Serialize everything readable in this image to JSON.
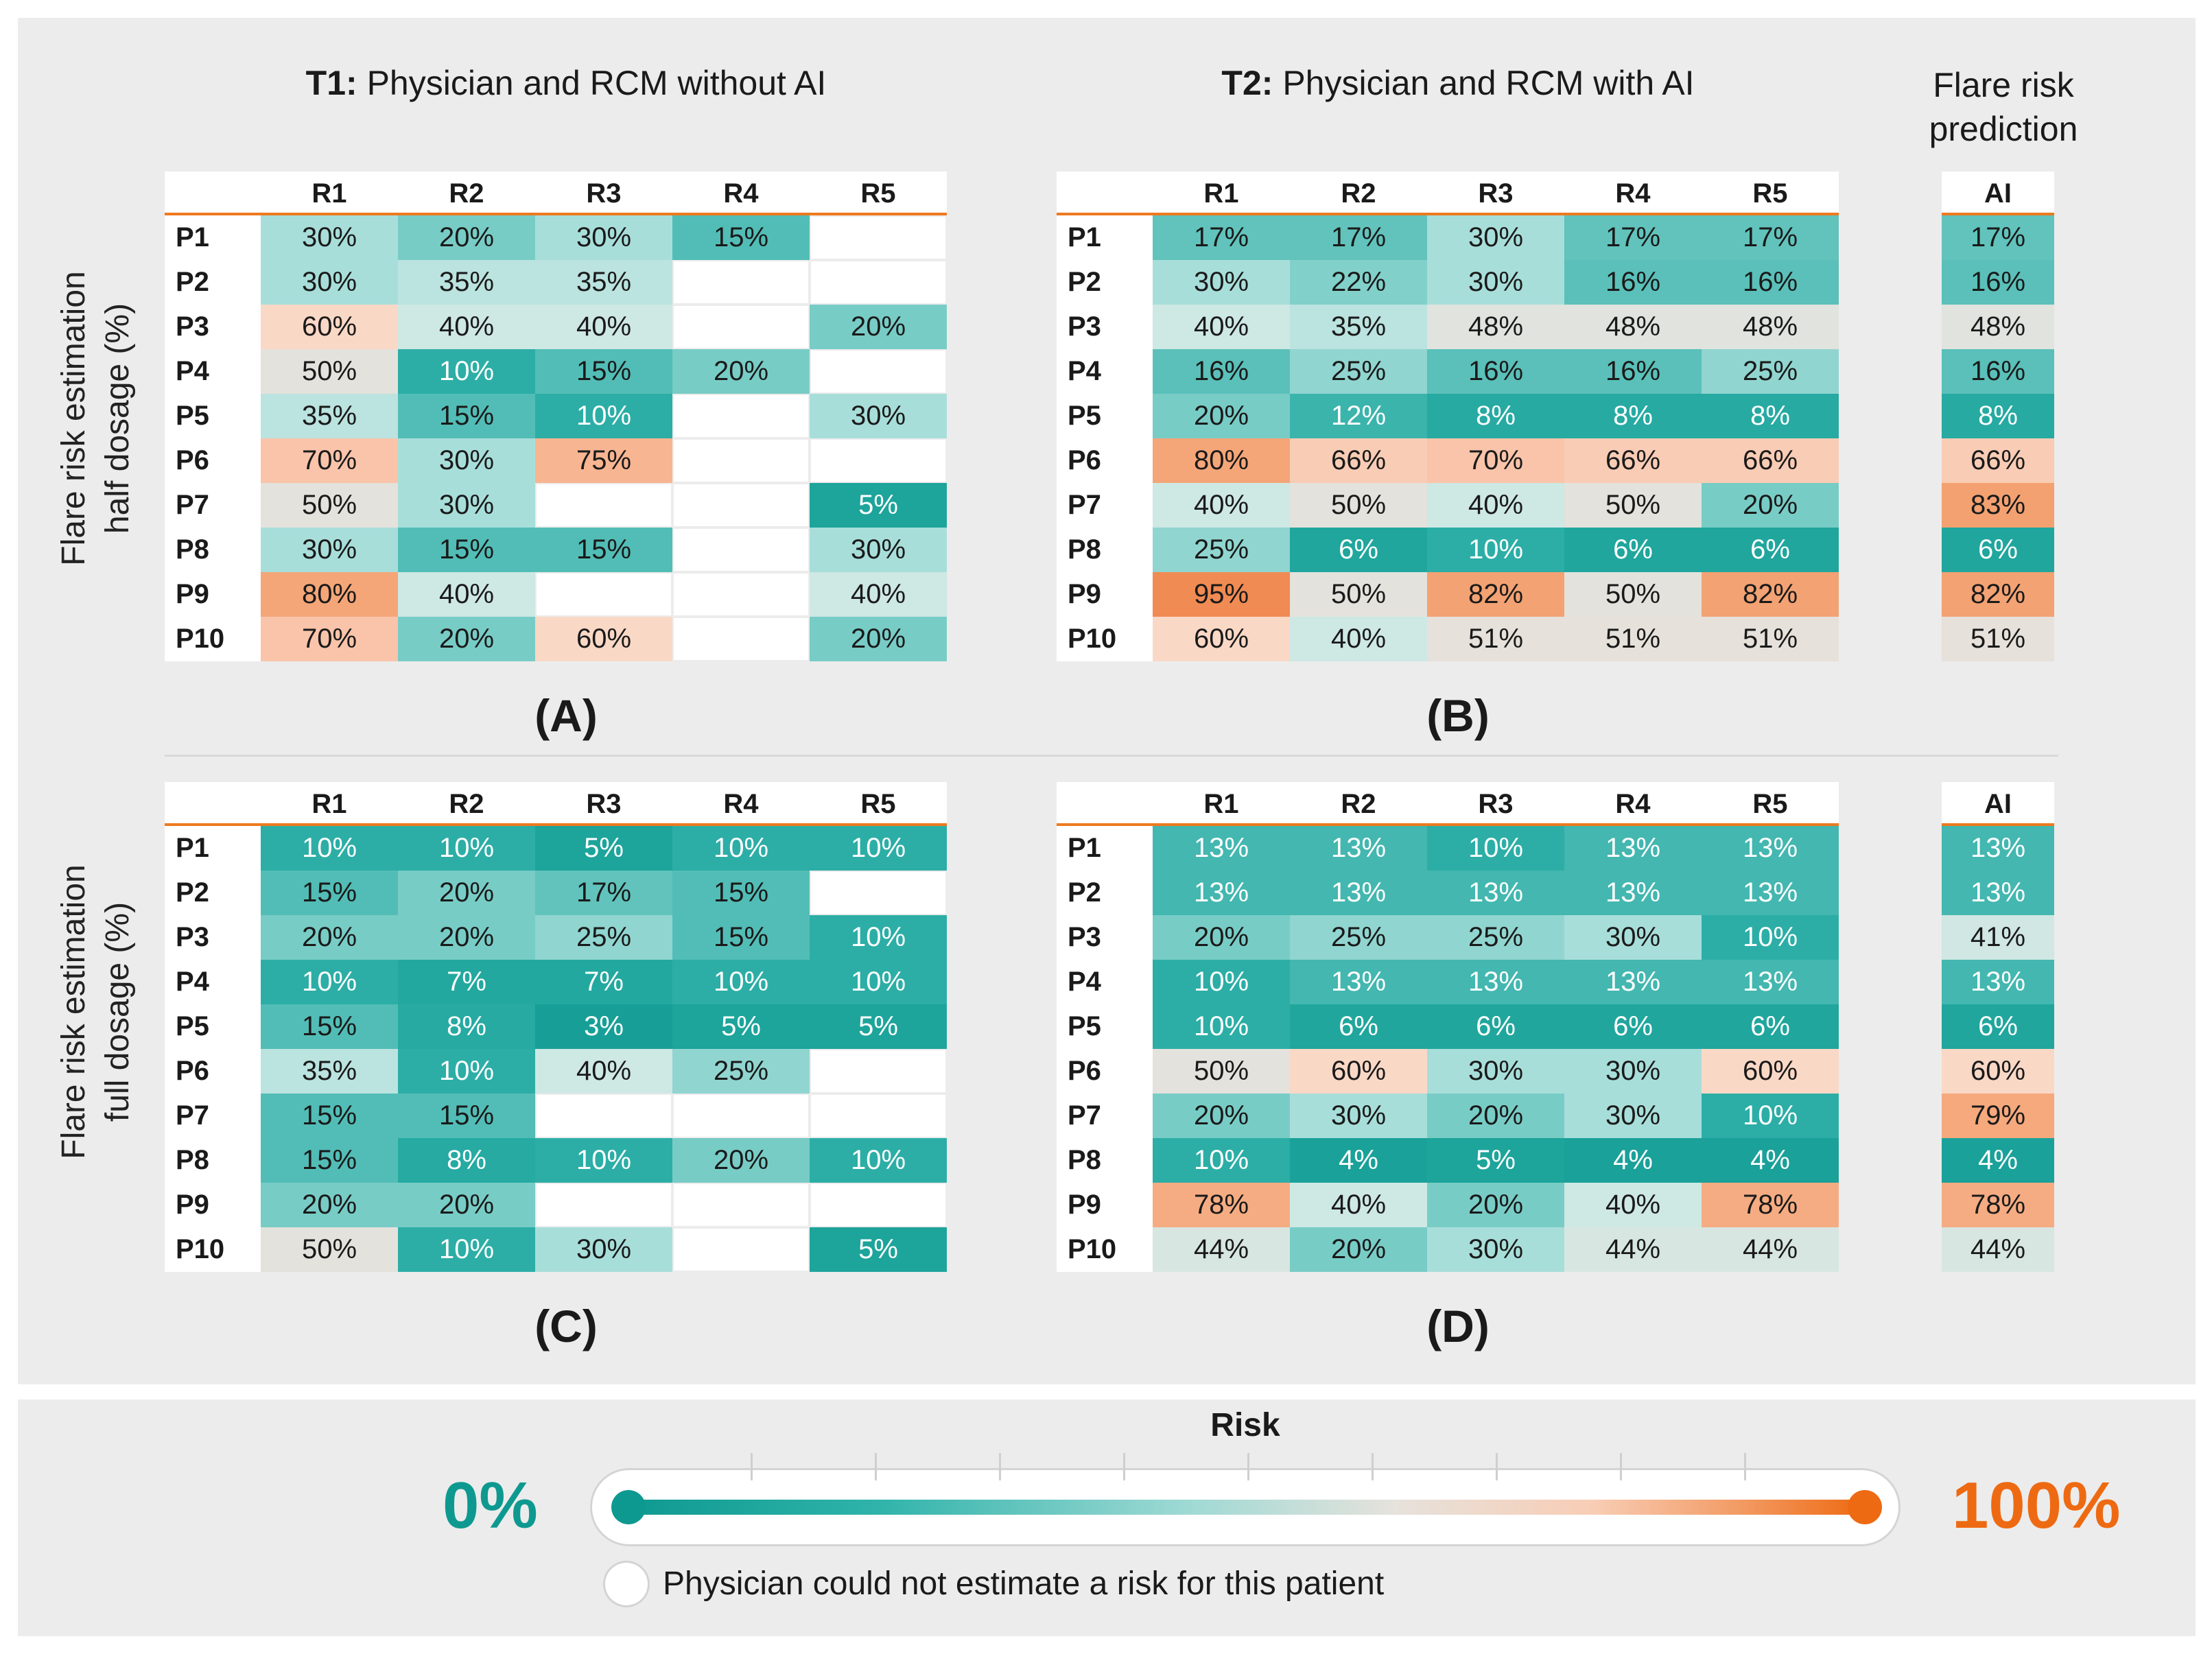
{
  "header": {
    "t1_bold": "T1:",
    "t1_rest": " Physician and RCM without AI",
    "t2_bold": "T2:",
    "t2_rest": " Physician and RCM with AI",
    "ai_line1": "Flare risk",
    "ai_line2": "prediction"
  },
  "ylabels": {
    "top_line1": "Flare risk estimation",
    "top_line2": "half dosage (%)",
    "bottom_line1": "Flare risk estimation",
    "bottom_line2": "full dosage (%)"
  },
  "legend": {
    "title": "Risk",
    "low": "0%",
    "high": "100%",
    "empty_note": "Physician could not estimate a risk for this patient",
    "low_color": "#0e9990",
    "high_color": "#ee6a12"
  },
  "chart_data": [
    {
      "type": "heatmap",
      "label": "(A)",
      "cols": [
        "R1",
        "R2",
        "R3",
        "R4",
        "R5"
      ],
      "rows": [
        "P1",
        "P2",
        "P3",
        "P4",
        "P5",
        "P6",
        "P7",
        "P8",
        "P9",
        "P10"
      ],
      "values": [
        [
          30,
          20,
          30,
          15,
          null
        ],
        [
          30,
          35,
          35,
          null,
          null
        ],
        [
          60,
          40,
          40,
          null,
          20
        ],
        [
          50,
          10,
          15,
          20,
          null
        ],
        [
          35,
          15,
          10,
          null,
          30
        ],
        [
          70,
          30,
          75,
          null,
          null
        ],
        [
          50,
          30,
          null,
          null,
          5
        ],
        [
          30,
          15,
          15,
          null,
          30
        ],
        [
          80,
          40,
          null,
          null,
          40
        ],
        [
          70,
          20,
          60,
          null,
          20
        ]
      ]
    },
    {
      "type": "heatmap",
      "label": "(B)",
      "cols": [
        "R1",
        "R2",
        "R3",
        "R4",
        "R5"
      ],
      "rows": [
        "P1",
        "P2",
        "P3",
        "P4",
        "P5",
        "P6",
        "P7",
        "P8",
        "P9",
        "P10"
      ],
      "values": [
        [
          17,
          17,
          30,
          17,
          17
        ],
        [
          30,
          22,
          30,
          16,
          16
        ],
        [
          40,
          35,
          48,
          48,
          48
        ],
        [
          16,
          25,
          16,
          16,
          25
        ],
        [
          20,
          12,
          8,
          8,
          8
        ],
        [
          80,
          66,
          70,
          66,
          66
        ],
        [
          40,
          50,
          40,
          50,
          20
        ],
        [
          25,
          6,
          10,
          6,
          6
        ],
        [
          95,
          50,
          82,
          50,
          82
        ],
        [
          60,
          40,
          51,
          51,
          51
        ]
      ]
    },
    {
      "type": "heatmap",
      "label": "AI-top",
      "cols": [
        "AI"
      ],
      "rows": [
        "P1",
        "P2",
        "P3",
        "P4",
        "P5",
        "P6",
        "P7",
        "P8",
        "P9",
        "P10"
      ],
      "values": [
        [
          17
        ],
        [
          16
        ],
        [
          48
        ],
        [
          16
        ],
        [
          8
        ],
        [
          66
        ],
        [
          83
        ],
        [
          6
        ],
        [
          82
        ],
        [
          51
        ]
      ]
    },
    {
      "type": "heatmap",
      "label": "(C)",
      "cols": [
        "R1",
        "R2",
        "R3",
        "R4",
        "R5"
      ],
      "rows": [
        "P1",
        "P2",
        "P3",
        "P4",
        "P5",
        "P6",
        "P7",
        "P8",
        "P9",
        "P10"
      ],
      "values": [
        [
          10,
          10,
          5,
          10,
          10
        ],
        [
          15,
          20,
          17,
          15,
          null
        ],
        [
          20,
          20,
          25,
          15,
          10
        ],
        [
          10,
          7,
          7,
          10,
          10
        ],
        [
          15,
          8,
          3,
          5,
          5
        ],
        [
          35,
          10,
          40,
          25,
          null
        ],
        [
          15,
          15,
          null,
          null,
          null
        ],
        [
          15,
          8,
          10,
          20,
          10
        ],
        [
          20,
          20,
          null,
          null,
          null
        ],
        [
          50,
          10,
          30,
          null,
          5
        ]
      ]
    },
    {
      "type": "heatmap",
      "label": "(D)",
      "cols": [
        "R1",
        "R2",
        "R3",
        "R4",
        "R5"
      ],
      "rows": [
        "P1",
        "P2",
        "P3",
        "P4",
        "P5",
        "P6",
        "P7",
        "P8",
        "P9",
        "P10"
      ],
      "values": [
        [
          13,
          13,
          10,
          13,
          13
        ],
        [
          13,
          13,
          13,
          13,
          13
        ],
        [
          20,
          25,
          25,
          30,
          10
        ],
        [
          10,
          13,
          13,
          13,
          13
        ],
        [
          10,
          6,
          6,
          6,
          6
        ],
        [
          50,
          60,
          30,
          30,
          60
        ],
        [
          20,
          30,
          20,
          30,
          10
        ],
        [
          10,
          4,
          5,
          4,
          4
        ],
        [
          78,
          40,
          20,
          40,
          78
        ],
        [
          44,
          20,
          30,
          44,
          44
        ]
      ]
    },
    {
      "type": "heatmap",
      "label": "AI-bottom",
      "cols": [
        "AI"
      ],
      "rows": [
        "P1",
        "P2",
        "P3",
        "P4",
        "P5",
        "P6",
        "P7",
        "P8",
        "P9",
        "P10"
      ],
      "values": [
        [
          13
        ],
        [
          13
        ],
        [
          41
        ],
        [
          13
        ],
        [
          6
        ],
        [
          60
        ],
        [
          79
        ],
        [
          4
        ],
        [
          78
        ],
        [
          44
        ]
      ]
    }
  ]
}
